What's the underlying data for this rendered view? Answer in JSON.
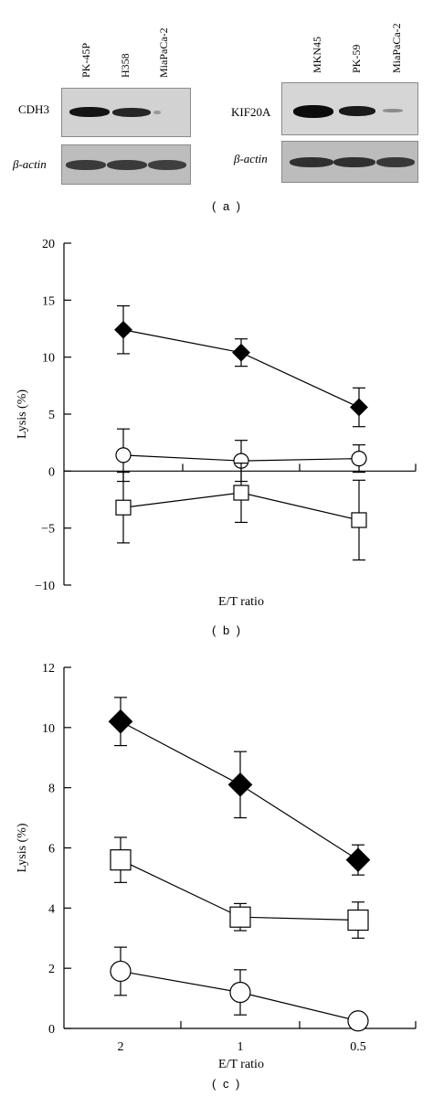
{
  "panel_a": {
    "left_blot": {
      "lanes": [
        "PK-45P",
        "H358",
        "MiaPaCa-2"
      ],
      "rows": [
        "CDH3",
        "β-actin"
      ]
    },
    "right_blot": {
      "lanes": [
        "MKN45",
        "PK-59",
        "MiaPaCa-2"
      ],
      "rows": [
        "KIF20A",
        "β-actin"
      ]
    },
    "label": "( a )"
  },
  "panel_b_label": "( b )",
  "panel_c_label": "( c )",
  "chart_data": [
    {
      "type": "line",
      "panel": "b",
      "xlabel": "E/T ratio",
      "ylabel": "Lysis (%)",
      "ylim": [
        -10,
        20
      ],
      "yticks": [
        -10,
        -5,
        0,
        5,
        10,
        15,
        20
      ],
      "ytick_labels": [
        "−10",
        "−5",
        "0",
        "5",
        "10",
        "15",
        "20"
      ],
      "categories": [
        "",
        "",
        ""
      ],
      "series": [
        {
          "marker": "filled-diamond",
          "values": [
            12.4,
            10.4,
            5.6
          ],
          "err": [
            2.1,
            1.2,
            1.7
          ]
        },
        {
          "marker": "open-circle",
          "values": [
            1.4,
            0.9,
            1.1
          ],
          "err": [
            2.3,
            1.8,
            1.2
          ]
        },
        {
          "marker": "open-square",
          "values": [
            -3.2,
            -1.9,
            -4.3
          ],
          "err": [
            3.1,
            2.6,
            3.5
          ]
        }
      ]
    },
    {
      "type": "line",
      "panel": "c",
      "xlabel": "E/T ratio",
      "ylabel": "Lysis (%)",
      "ylim": [
        0,
        12
      ],
      "yticks": [
        0,
        2,
        4,
        6,
        8,
        10,
        12
      ],
      "ytick_labels": [
        "0",
        "2",
        "4",
        "6",
        "8",
        "10",
        "12"
      ],
      "categories": [
        "2",
        "1",
        "0.5"
      ],
      "series": [
        {
          "marker": "filled-diamond",
          "values": [
            10.2,
            8.1,
            5.6
          ],
          "err": [
            0.8,
            1.1,
            0.5
          ]
        },
        {
          "marker": "open-square",
          "values": [
            5.6,
            3.7,
            3.6
          ],
          "err": [
            0.75,
            0.45,
            0.6
          ]
        },
        {
          "marker": "open-circle",
          "values": [
            1.9,
            1.2,
            0.25
          ],
          "err": [
            0.8,
            0.75,
            0
          ]
        }
      ]
    }
  ]
}
